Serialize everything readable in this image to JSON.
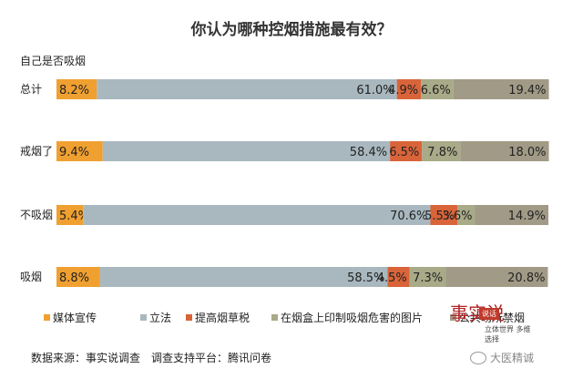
{
  "chart_data": {
    "type": "bar",
    "orientation": "horizontal-stacked-100",
    "title": "你认为哪种控烟措施最有效？",
    "subtitle": "自己是否吸烟",
    "categories": [
      "总计",
      "戒烟了",
      "不吸烟",
      "吸烟"
    ],
    "series": [
      {
        "name": "媒体宣传",
        "color": "#f0a030",
        "values": [
          8.2,
          9.4,
          5.4,
          8.8
        ],
        "labels": [
          "8.2%",
          "9.4%",
          "5.4%",
          "8.8%"
        ]
      },
      {
        "name": "立法",
        "color": "#a9b8bf",
        "values": [
          61.0,
          58.4,
          70.6,
          58.5
        ],
        "labels": [
          "61.0%",
          "58.4%",
          "70.6%",
          "58.5%"
        ]
      },
      {
        "name": "提高烟草税",
        "color": "#d9643a",
        "values": [
          4.9,
          6.5,
          5.5,
          4.5
        ],
        "labels": [
          "4.9%",
          "6.5%",
          "5.5%",
          "4.5%"
        ]
      },
      {
        "name": "在烟盒上印制吸烟危害的图片",
        "color": "#a8aa88",
        "values": [
          6.6,
          7.8,
          3.6,
          7.3
        ],
        "labels": [
          "6.6%",
          "7.8%",
          "3.6%",
          "7.3%"
        ]
      },
      {
        "name": "公共场所禁烟",
        "color": "#a19a86",
        "values": [
          19.4,
          18.0,
          14.9,
          20.8
        ],
        "labels": [
          "19.4%",
          "18.0%",
          "14.9%",
          "20.8%"
        ]
      }
    ],
    "xlim": [
      0,
      100
    ],
    "grid": false,
    "legend_position": "bottom"
  },
  "footer": {
    "source": "数据来源：事实说调查　调查支持平台：腾讯问卷"
  },
  "logo": {
    "stamp": "说话",
    "tagline": "立体世界 多维选择"
  },
  "watermark": {
    "text": "大医精诚"
  }
}
